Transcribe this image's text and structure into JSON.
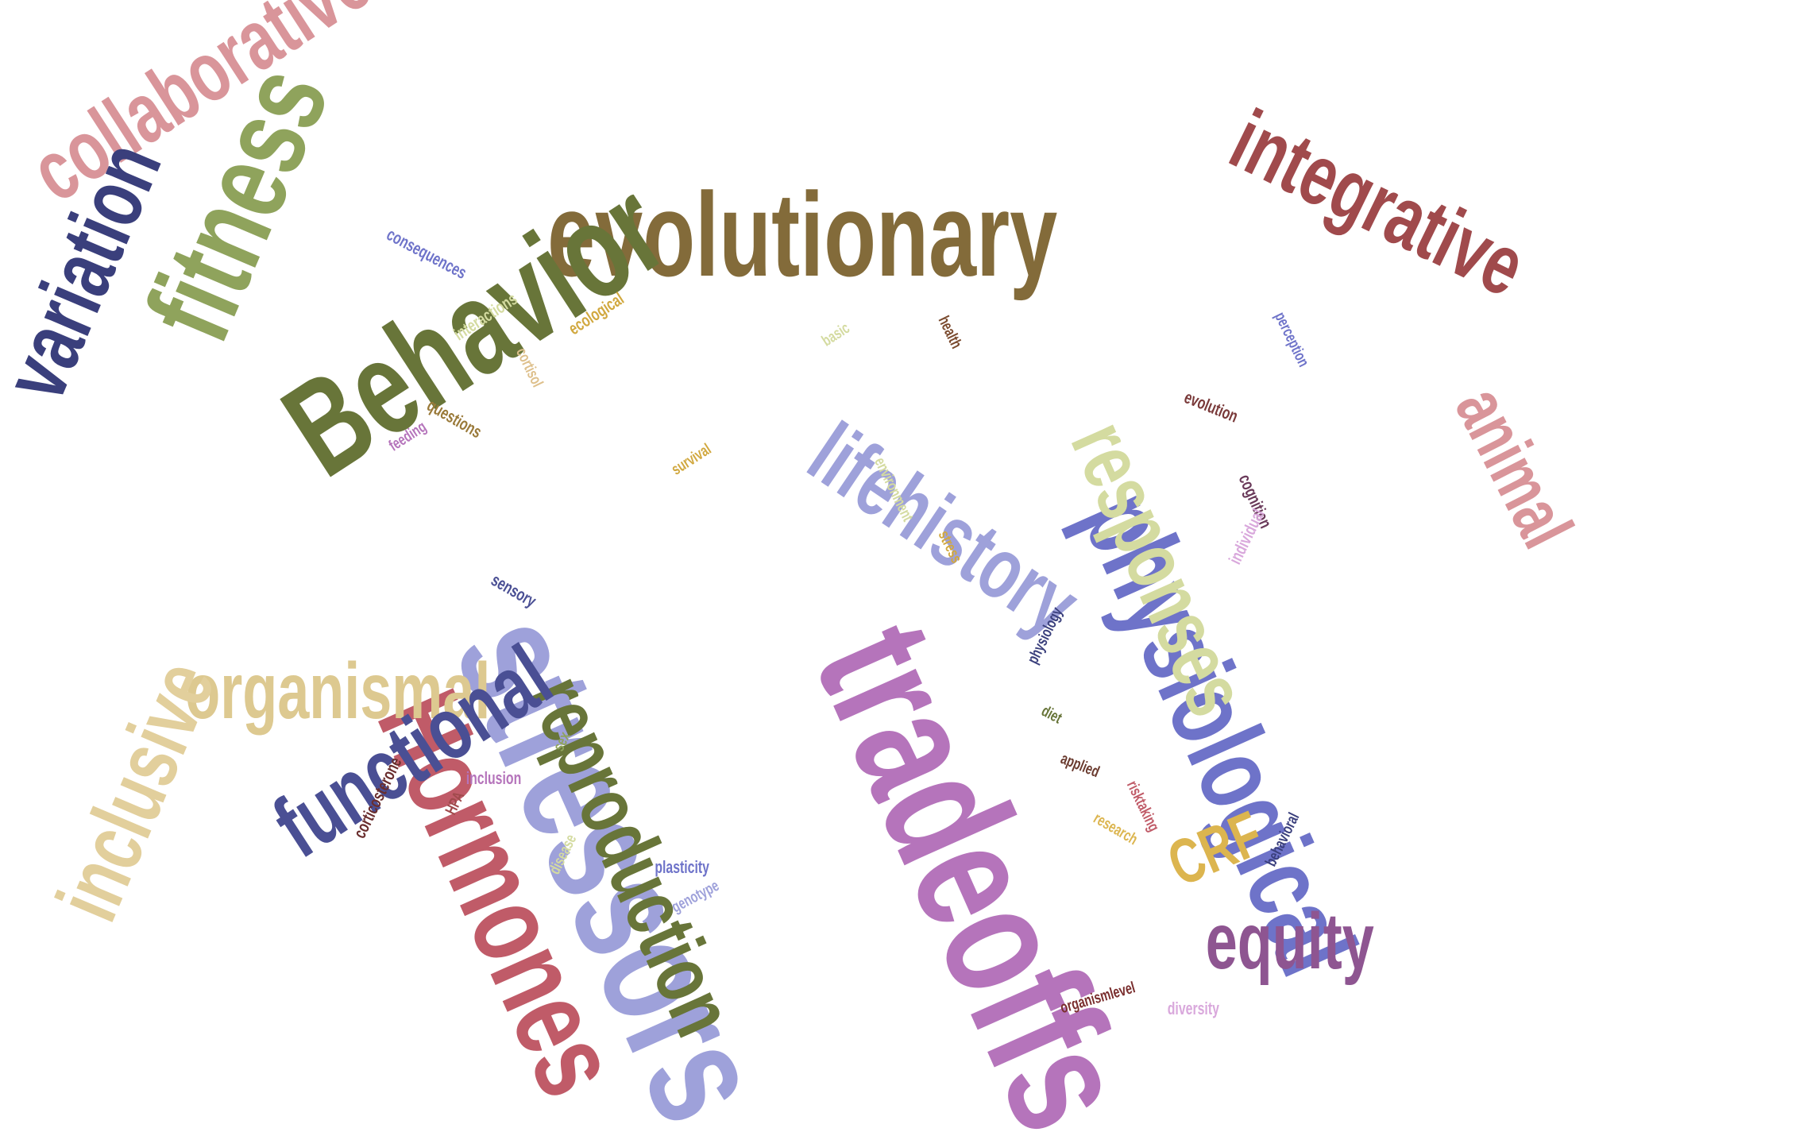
{
  "words": [
    {
      "id": "evolutionary",
      "text": "evolutionary",
      "color": "#836b3a"
    },
    {
      "id": "integrative",
      "text": "integrative",
      "color": "#a04a4c"
    },
    {
      "id": "collaborative",
      "text": "collaborative",
      "color": "#d9959a"
    },
    {
      "id": "physiological",
      "text": "physiological",
      "color": "#6e73c9"
    },
    {
      "id": "animal",
      "text": "animal",
      "color": "#d9959a"
    },
    {
      "id": "responses",
      "text": "responses",
      "color": "#d4dba0"
    },
    {
      "id": "tradeoffs",
      "text": "tradeoffs",
      "color": "#b574bb"
    },
    {
      "id": "stressors",
      "text": "stressors",
      "color": "#9ea1da"
    },
    {
      "id": "lifehistory",
      "text": "lifehistory",
      "color": "#9ea1da"
    },
    {
      "id": "hormones",
      "text": "Hormones",
      "color": "#c05b68"
    },
    {
      "id": "reproduction",
      "text": "reproduction",
      "color": "#687539"
    },
    {
      "id": "behavior",
      "text": "Behavior",
      "color": "#687539"
    },
    {
      "id": "fitness",
      "text": "fitness",
      "color": "#8fa35c"
    },
    {
      "id": "variation",
      "text": "variation",
      "color": "#3a3f7c"
    },
    {
      "id": "organismal",
      "text": "organismal",
      "color": "#ddc990"
    },
    {
      "id": "inclusive",
      "text": "inclusive",
      "color": "#e2cf9c"
    },
    {
      "id": "functional",
      "text": "functional",
      "color": "#4a4f94"
    },
    {
      "id": "equity",
      "text": "equity",
      "color": "#8e5591"
    },
    {
      "id": "crf",
      "text": "CRF",
      "color": "#dcb54f"
    },
    {
      "id": "consequences",
      "text": "consequences",
      "color": "#6e73c9"
    },
    {
      "id": "interactions",
      "text": "interactions",
      "color": "#d4dba0"
    },
    {
      "id": "cortisol",
      "text": "cortisol",
      "color": "#dec08c"
    },
    {
      "id": "ecological",
      "text": "ecological",
      "color": "#d1a83f"
    },
    {
      "id": "basic",
      "text": "basic",
      "color": "#d4dba0"
    },
    {
      "id": "health",
      "text": "health",
      "color": "#7a4a2e"
    },
    {
      "id": "perception",
      "text": "perception",
      "color": "#6e73c9"
    },
    {
      "id": "evolution",
      "text": "evolution",
      "color": "#7a3a3a"
    },
    {
      "id": "cognition",
      "text": "cognition",
      "color": "#6a3a5a"
    },
    {
      "id": "questions",
      "text": "questions",
      "color": "#9a7a3a"
    },
    {
      "id": "feeding",
      "text": "feeding",
      "color": "#b574bb"
    },
    {
      "id": "survival",
      "text": "survival",
      "color": "#d1a83f"
    },
    {
      "id": "environment",
      "text": "environment",
      "color": "#d4dba0"
    },
    {
      "id": "stress",
      "text": "stress",
      "color": "#d1a83f"
    },
    {
      "id": "individual",
      "text": "individual",
      "color": "#d9a8dc"
    },
    {
      "id": "sensory",
      "text": "sensory",
      "color": "#4a4f94"
    },
    {
      "id": "physiology",
      "text": "physiology",
      "color": "#3a3f7c"
    },
    {
      "id": "diet",
      "text": "diet",
      "color": "#687539"
    },
    {
      "id": "applied",
      "text": "applied",
      "color": "#6a3a2e"
    },
    {
      "id": "risktaking",
      "text": "risktaking",
      "color": "#c05b68"
    },
    {
      "id": "research",
      "text": "research",
      "color": "#dcb54f"
    },
    {
      "id": "behavioral",
      "text": "behavioral",
      "color": "#3a3f7c"
    },
    {
      "id": "inclusion",
      "text": "inclusion",
      "color": "#b574bb"
    },
    {
      "id": "sex",
      "text": "sex",
      "color": "#8fa35c"
    },
    {
      "id": "corticosterone",
      "text": "corticosterone",
      "color": "#6a2e2e"
    },
    {
      "id": "hpa",
      "text": "HPA",
      "color": "#a04a4c"
    },
    {
      "id": "disease",
      "text": "disease",
      "color": "#d4dba0"
    },
    {
      "id": "plasticity",
      "text": "plasticity",
      "color": "#6e73c9"
    },
    {
      "id": "genotype",
      "text": "genotype",
      "color": "#9ea1da"
    },
    {
      "id": "organismlevel",
      "text": "organismlevel",
      "color": "#7a2e2e"
    },
    {
      "id": "diversity",
      "text": "diversity",
      "color": "#d9a8dc"
    }
  ]
}
